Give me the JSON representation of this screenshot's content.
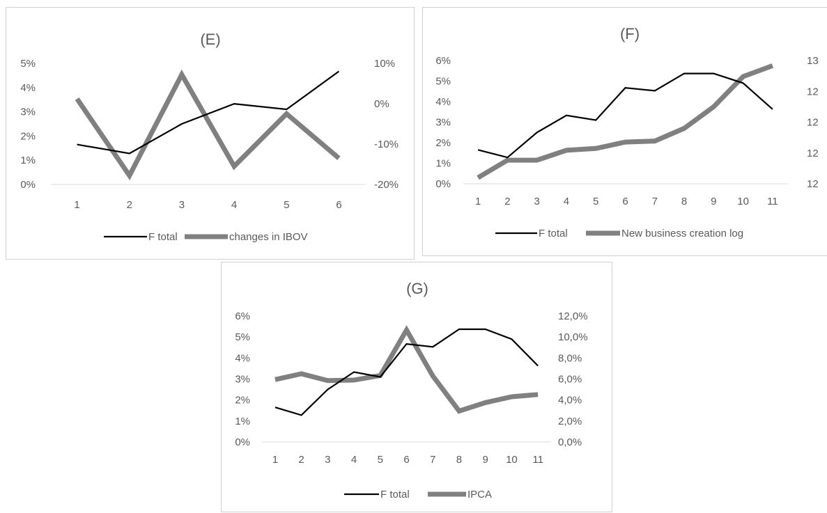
{
  "chart_data": [
    {
      "type": "line",
      "title": "(E)",
      "x": [
        1,
        2,
        3,
        4,
        5,
        6
      ],
      "series": [
        {
          "name": "F total",
          "axis": "left",
          "color": "#000000",
          "values": [
            0.0165,
            0.0128,
            0.025,
            0.0333,
            0.031,
            0.0467
          ]
        },
        {
          "name": "changes in IBOV",
          "axis": "right",
          "color": "#808080",
          "values": [
            0.012,
            -0.178,
            0.072,
            -0.155,
            -0.025,
            -0.135
          ]
        }
      ],
      "y_left": {
        "ylim": [
          0,
          0.05
        ],
        "ticks": [
          0,
          0.01,
          0.02,
          0.03,
          0.04,
          0.05
        ],
        "tick_labels": [
          "0%",
          "1%",
          "2%",
          "3%",
          "4%",
          "5%"
        ]
      },
      "y_right": {
        "ylim": [
          -0.2,
          0.1
        ],
        "ticks": [
          -0.2,
          -0.1,
          0,
          0.1
        ],
        "tick_labels": [
          "-20%",
          "-10%",
          "0%",
          "10%"
        ]
      },
      "legend_position": "bottom",
      "grid": false
    },
    {
      "type": "line",
      "title": "(F)",
      "x": [
        1,
        2,
        3,
        4,
        5,
        6,
        7,
        8,
        9,
        10,
        11
      ],
      "series": [
        {
          "name": "F total",
          "axis": "left",
          "color": "#000000",
          "values": [
            0.0165,
            0.0128,
            0.025,
            0.0333,
            0.031,
            0.0467,
            0.0453,
            0.0537,
            0.0537,
            0.049,
            0.0363
          ]
        },
        {
          "name": "New business creation log",
          "axis": "right",
          "color": "#808080",
          "values": [
            12.03,
            12.115,
            12.115,
            12.163,
            12.172,
            12.203,
            12.208,
            12.27,
            12.375,
            12.522,
            12.575
          ]
        }
      ],
      "y_left": {
        "ylim": [
          0,
          0.06
        ],
        "ticks": [
          0,
          0.01,
          0.02,
          0.03,
          0.04,
          0.05,
          0.06
        ],
        "tick_labels": [
          "0%",
          "1%",
          "2%",
          "3%",
          "4%",
          "5%",
          "6%"
        ]
      },
      "y_right": {
        "ylim": [
          12,
          12.6
        ],
        "ticks": [
          12,
          12.15,
          12.3,
          12.45,
          12.6
        ],
        "tick_labels": [
          "12",
          "12",
          "12",
          "12",
          "13"
        ]
      },
      "legend_position": "bottom",
      "grid": false
    },
    {
      "type": "line",
      "title": "(G)",
      "x": [
        1,
        2,
        3,
        4,
        5,
        6,
        7,
        8,
        9,
        10,
        11
      ],
      "series": [
        {
          "name": "F total",
          "axis": "left",
          "color": "#000000",
          "values": [
            0.0165,
            0.0128,
            0.025,
            0.0333,
            0.031,
            0.0467,
            0.0453,
            0.0537,
            0.0537,
            0.049,
            0.0363
          ]
        },
        {
          "name": "IPCA",
          "axis": "right",
          "color": "#808080",
          "values": [
            0.0595,
            0.065,
            0.0585,
            0.059,
            0.0633,
            0.1067,
            0.0629,
            0.0295,
            0.0375,
            0.0431,
            0.0452
          ]
        }
      ],
      "y_left": {
        "ylim": [
          0,
          0.06
        ],
        "ticks": [
          0,
          0.01,
          0.02,
          0.03,
          0.04,
          0.05,
          0.06
        ],
        "tick_labels": [
          "0%",
          "1%",
          "2%",
          "3%",
          "4%",
          "5%",
          "6%"
        ]
      },
      "y_right": {
        "ylim": [
          0,
          0.12
        ],
        "ticks": [
          0,
          0.02,
          0.04,
          0.06,
          0.08,
          0.1,
          0.12
        ],
        "tick_labels": [
          "0,0%",
          "2,0%",
          "4,0%",
          "6,0%",
          "8,0%",
          "10,0%",
          "12,0%"
        ]
      },
      "legend_position": "bottom",
      "grid": false
    }
  ]
}
